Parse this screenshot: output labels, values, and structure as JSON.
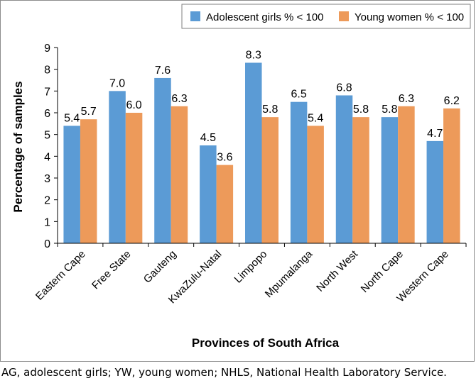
{
  "caption": "AG, adolescent girls; YW, young women; NHLS, National Health Laboratory Service.",
  "chart_data": {
    "type": "bar",
    "title": "",
    "xlabel": "Provinces of South Africa",
    "ylabel": "Percentage of samples",
    "ylim": [
      0,
      9
    ],
    "yticks": [
      0,
      1,
      2,
      3,
      4,
      5,
      6,
      7,
      8,
      9
    ],
    "grid": false,
    "legend_position": "top-right",
    "categories": [
      "Eastern Cape",
      "Free State",
      "Gauteng",
      "KwaZulu-Natal",
      "Limpopo",
      "Mpumalanga",
      "North West",
      "North Cape",
      "Western Cape"
    ],
    "series": [
      {
        "name": "Adolescent girls % < 100",
        "color": "#5b9bd5",
        "values": [
          5.4,
          7.0,
          7.6,
          4.5,
          8.3,
          6.5,
          6.8,
          5.8,
          4.7
        ],
        "labels": [
          "5.4",
          "7.0",
          "7.6",
          "4.5",
          "8.3",
          "6.5",
          "6.8",
          "5.8",
          "4.7"
        ]
      },
      {
        "name": "Young women % < 100",
        "color": "#ed9a5a",
        "values": [
          5.7,
          6.0,
          6.3,
          3.6,
          5.8,
          5.4,
          5.8,
          6.3,
          6.2
        ],
        "labels": [
          "5.7",
          "6.0",
          "6.3",
          "3.6",
          "5.8",
          "5.4",
          "5.8",
          "6.3",
          "6.2"
        ]
      }
    ]
  }
}
